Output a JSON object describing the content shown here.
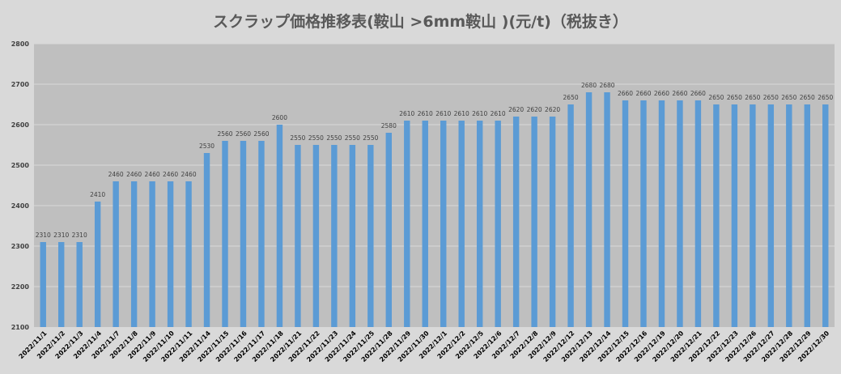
{
  "chart_data": {
    "type": "bar",
    "title": "スクラップ価格推移表(鞍山 >6mm鞍山 )(元/t)（税抜き）",
    "xlabel": "",
    "ylabel": "",
    "ylim": [
      2100,
      2800
    ],
    "yticks": [
      2100,
      2200,
      2300,
      2400,
      2500,
      2600,
      2700,
      2800
    ],
    "grid": true,
    "legend": "none",
    "categories": [
      "2022/11/1",
      "2022/11/2",
      "2022/11/3",
      "2022/11/4",
      "2022/11/7",
      "2022/11/8",
      "2022/11/9",
      "2022/11/10",
      "2022/11/11",
      "2022/11/14",
      "2022/11/15",
      "2022/11/16",
      "2022/11/17",
      "2022/11/18",
      "2022/11/21",
      "2022/11/22",
      "2022/11/23",
      "2022/11/24",
      "2022/11/25",
      "2022/11/28",
      "2022/11/29",
      "2022/11/30",
      "2022/12/1",
      "2022/12/2",
      "2022/12/5",
      "2022/12/6",
      "2022/12/7",
      "2022/12/8",
      "2022/12/9",
      "2022/12/12",
      "2022/12/13",
      "2022/12/14",
      "2022/12/15",
      "2022/12/16",
      "2022/12/19",
      "2022/12/20",
      "2022/12/21",
      "2022/12/22",
      "2022/12/23",
      "2022/12/26",
      "2022/12/27",
      "2022/12/28",
      "2022/12/29",
      "2022/12/30"
    ],
    "values": [
      2310,
      2310,
      2310,
      2410,
      2460,
      2460,
      2460,
      2460,
      2460,
      2530,
      2560,
      2560,
      2560,
      2600,
      2550,
      2550,
      2550,
      2550,
      2550,
      2580,
      2610,
      2610,
      2610,
      2610,
      2610,
      2610,
      2620,
      2620,
      2620,
      2650,
      2680,
      2680,
      2660,
      2660,
      2660,
      2660,
      2660,
      2650,
      2650,
      2650,
      2650,
      2650,
      2650,
      2650
    ],
    "colors": {
      "bar": "#5b9bd5",
      "plot_bg": "#bfbfbf",
      "grid": "#d9d9d9",
      "page_bg": "#d9d9d9"
    }
  }
}
